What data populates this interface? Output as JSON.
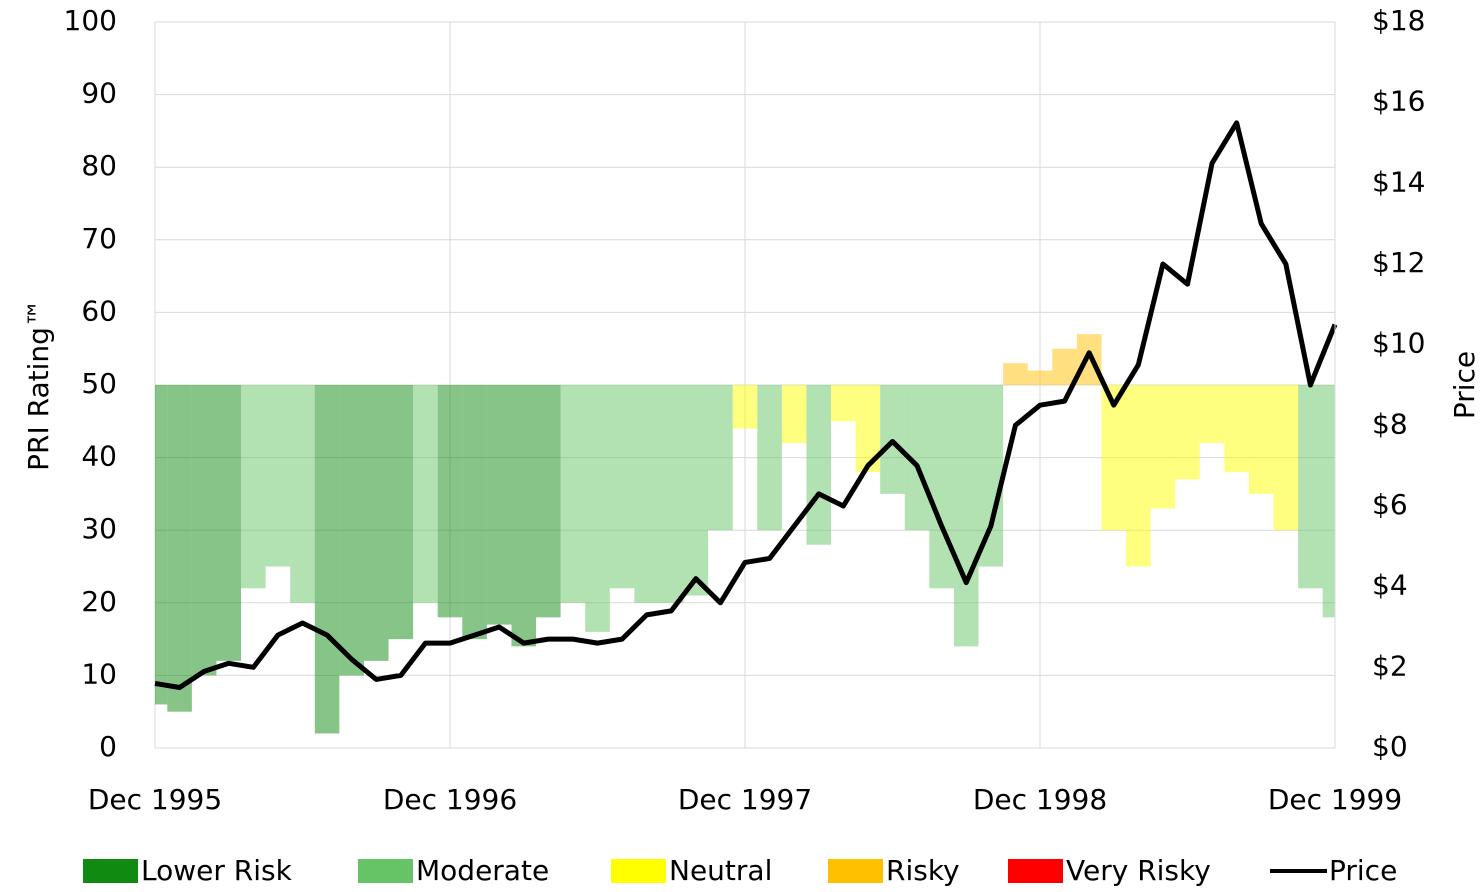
{
  "chart_data": {
    "type": "bar-line",
    "y_label": "PRI Rating™",
    "y2_label": "Price",
    "categories": [
      "Dec 1995",
      null,
      null,
      null,
      null,
      null,
      null,
      null,
      null,
      null,
      null,
      null,
      "Dec 1996",
      null,
      null,
      null,
      null,
      null,
      null,
      null,
      null,
      null,
      null,
      null,
      "Dec 1997",
      null,
      null,
      null,
      null,
      null,
      null,
      null,
      null,
      null,
      null,
      null,
      "Dec 1998",
      null,
      null,
      null,
      null,
      null,
      null,
      null,
      null,
      null,
      null,
      null,
      "Dec 1999"
    ],
    "legend": [
      {
        "name": "Lower Risk",
        "color": "#108a10"
      },
      {
        "name": "Moderate",
        "color": "#66c466"
      },
      {
        "name": "Neutral",
        "color": "#ffff00"
      },
      {
        "name": "Risky",
        "color": "#ffc000"
      },
      {
        "name": "Very Risky",
        "color": "#ff0000"
      }
    ],
    "bar_baseline": 50,
    "series": [
      {
        "values": [
          6,
          5,
          10,
          12,
          22,
          25,
          20,
          2,
          10,
          12,
          15,
          20,
          18,
          15,
          17,
          14,
          18,
          20,
          16,
          22,
          20,
          20,
          21,
          30,
          44,
          30,
          42,
          28,
          45,
          38,
          35,
          30,
          22,
          14,
          25,
          53,
          52,
          55,
          57,
          30,
          25,
          33,
          37,
          42,
          38,
          35,
          30,
          22,
          18
        ],
        "colors": [
          "#108a10",
          "#108a10",
          "#108a10",
          "#108a10",
          "#66c466",
          "#66c466",
          "#66c466",
          "#108a10",
          "#108a10",
          "#108a10",
          "#108a10",
          "#66c466",
          "#108a10",
          "#108a10",
          "#108a10",
          "#108a10",
          "#108a10",
          "#66c466",
          "#66c466",
          "#66c466",
          "#66c466",
          "#66c466",
          "#66c466",
          "#66c466",
          "#ffff00",
          "#66c466",
          "#ffff00",
          "#66c466",
          "#ffff00",
          "#ffff00",
          "#66c466",
          "#66c466",
          "#66c466",
          "#66c466",
          "#66c466",
          "#ffc000",
          "#ffc000",
          "#ffc000",
          "#ffc000",
          "#ffff00",
          "#ffff00",
          "#ffff00",
          "#ffff00",
          "#ffff00",
          "#ffff00",
          "#ffff00",
          "#ffff00",
          "#66c466",
          "#66c466"
        ]
      },
      {
        "name": "Price",
        "color": "#000000",
        "axis": "y2",
        "values": [
          1.6,
          1.5,
          1.9,
          2.1,
          2.0,
          2.8,
          3.1,
          2.8,
          2.2,
          1.7,
          1.8,
          2.6,
          2.6,
          2.8,
          3.0,
          2.6,
          2.7,
          2.7,
          2.6,
          2.7,
          3.3,
          3.4,
          4.2,
          3.6,
          4.6,
          4.7,
          5.5,
          6.3,
          6.0,
          7.0,
          7.6,
          7.0,
          5.5,
          4.1,
          5.5,
          8.0,
          8.5,
          8.6,
          9.8,
          8.5,
          9.5,
          12.0,
          11.5,
          14.5,
          15.5,
          13.0,
          12.0,
          9.0,
          10.5
        ]
      }
    ],
    "ylim": [
      0,
      100
    ],
    "yticks": [
      0,
      10,
      20,
      30,
      40,
      50,
      60,
      70,
      80,
      90,
      100
    ],
    "y2lim": [
      0,
      18
    ],
    "y2ticks": [
      {
        "value": 0,
        "label": "$0"
      },
      {
        "value": 2,
        "label": "$2"
      },
      {
        "value": 4,
        "label": "$4"
      },
      {
        "value": 6,
        "label": "$6"
      },
      {
        "value": 8,
        "label": "$8"
      },
      {
        "value": 10,
        "label": "$10"
      },
      {
        "value": 12,
        "label": "$12"
      },
      {
        "value": 14,
        "label": "$14"
      },
      {
        "value": 16,
        "label": "$16"
      },
      {
        "value": 18,
        "label": "$18"
      }
    ],
    "grid": true
  }
}
